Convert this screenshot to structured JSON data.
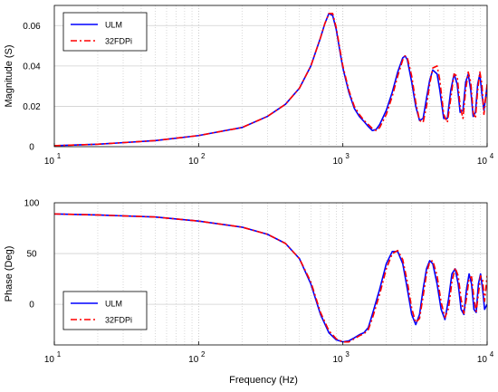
{
  "chart_data": [
    {
      "type": "line",
      "xlabel": "",
      "ylabel": "Magnitude (S)",
      "xscale": "log",
      "xlim": [
        10,
        10000
      ],
      "ylim": [
        0,
        0.07
      ],
      "xticks": [
        10,
        100,
        1000,
        10000
      ],
      "yticks": [
        0,
        0.02,
        0.04,
        0.06
      ],
      "ytick_labels": [
        "0",
        "0.02",
        "0.04",
        "0.06"
      ],
      "grid": "on",
      "legend": "top-left",
      "series": [
        {
          "name": "ULM",
          "color": "#0000ff",
          "style": "solid",
          "x": [
            10,
            20,
            50,
            100,
            200,
            300,
            400,
            500,
            600,
            700,
            750,
            800,
            850,
            900,
            950,
            1000,
            1100,
            1200,
            1300,
            1400,
            1500,
            1600,
            1700,
            1800,
            2000,
            2200,
            2400,
            2600,
            2700,
            2800,
            3000,
            3200,
            3400,
            3600,
            3800,
            4000,
            4200,
            4500,
            4700,
            5000,
            5300,
            5600,
            5900,
            6200,
            6500,
            6800,
            7100,
            7400,
            7700,
            8000,
            8300,
            8600,
            8900,
            9200,
            9500,
            10000
          ],
          "y": [
            0.0005,
            0.0012,
            0.003,
            0.0055,
            0.0095,
            0.015,
            0.021,
            0.029,
            0.04,
            0.054,
            0.061,
            0.066,
            0.065,
            0.058,
            0.048,
            0.039,
            0.027,
            0.019,
            0.015,
            0.0125,
            0.01,
            0.008,
            0.0085,
            0.011,
            0.018,
            0.027,
            0.037,
            0.044,
            0.045,
            0.043,
            0.032,
            0.02,
            0.013,
            0.014,
            0.024,
            0.033,
            0.038,
            0.036,
            0.028,
            0.014,
            0.014,
            0.028,
            0.036,
            0.031,
            0.017,
            0.018,
            0.032,
            0.036,
            0.028,
            0.015,
            0.017,
            0.031,
            0.036,
            0.026,
            0.018,
            0.03
          ]
        },
        {
          "name": "32FDPi",
          "color": "#ff0000",
          "style": "dash-dot",
          "x": [
            10,
            20,
            50,
            100,
            200,
            300,
            400,
            500,
            600,
            700,
            750,
            800,
            850,
            900,
            950,
            1000,
            1100,
            1200,
            1300,
            1400,
            1500,
            1600,
            1700,
            1800,
            2000,
            2200,
            2400,
            2600,
            2700,
            2800,
            3000,
            3200,
            3400,
            3600,
            3800,
            4000,
            4200,
            4500,
            4700,
            5000,
            5300,
            5600,
            5900,
            6200,
            6500,
            6800,
            7100,
            7400,
            7700,
            8000,
            8300,
            8600,
            8900,
            9200,
            9500,
            10000
          ],
          "y": [
            0.0005,
            0.0012,
            0.003,
            0.0055,
            0.0095,
            0.015,
            0.021,
            0.029,
            0.04,
            0.054,
            0.061,
            0.066,
            0.066,
            0.059,
            0.049,
            0.04,
            0.028,
            0.02,
            0.016,
            0.013,
            0.011,
            0.009,
            0.008,
            0.0095,
            0.016,
            0.025,
            0.035,
            0.043,
            0.045,
            0.044,
            0.035,
            0.022,
            0.013,
            0.012,
            0.02,
            0.031,
            0.039,
            0.04,
            0.033,
            0.016,
            0.012,
            0.024,
            0.036,
            0.035,
            0.02,
            0.014,
            0.028,
            0.037,
            0.032,
            0.017,
            0.014,
            0.028,
            0.037,
            0.031,
            0.016,
            0.031
          ]
        }
      ]
    },
    {
      "type": "line",
      "xlabel": "Frequency (Hz)",
      "ylabel": "Phase (Deg)",
      "xscale": "log",
      "xlim": [
        10,
        10000
      ],
      "ylim": [
        -40,
        100
      ],
      "xticks": [
        10,
        100,
        1000,
        10000
      ],
      "yticks": [
        0,
        50,
        100
      ],
      "ytick_labels": [
        "0",
        "50",
        "100"
      ],
      "grid": "on",
      "legend": "bottom-left",
      "series": [
        {
          "name": "ULM",
          "color": "#0000ff",
          "style": "solid",
          "x": [
            10,
            20,
            50,
            100,
            200,
            300,
            400,
            500,
            600,
            700,
            800,
            900,
            1000,
            1100,
            1200,
            1300,
            1400,
            1500,
            1600,
            1800,
            2000,
            2200,
            2400,
            2600,
            2800,
            3000,
            3200,
            3400,
            3600,
            3800,
            4000,
            4200,
            4500,
            4800,
            5100,
            5400,
            5700,
            6000,
            6300,
            6600,
            6900,
            7200,
            7500,
            7800,
            8100,
            8400,
            8700,
            9000,
            9300,
            9600,
            10000
          ],
          "y": [
            89,
            88,
            86,
            82,
            76,
            69,
            60,
            45,
            20,
            -10,
            -28,
            -35,
            -37,
            -36,
            -33,
            -30,
            -28,
            -23,
            -10,
            15,
            40,
            52,
            52,
            40,
            15,
            -10,
            -20,
            -10,
            15,
            35,
            43,
            40,
            20,
            -5,
            -15,
            5,
            30,
            35,
            20,
            -5,
            -10,
            15,
            30,
            20,
            -5,
            -8,
            20,
            30,
            15,
            -5,
            0
          ]
        },
        {
          "name": "32FDPi",
          "color": "#ff0000",
          "style": "dash-dot",
          "x": [
            10,
            20,
            50,
            100,
            200,
            300,
            400,
            500,
            600,
            700,
            800,
            900,
            1000,
            1100,
            1200,
            1300,
            1400,
            1500,
            1600,
            1800,
            2000,
            2200,
            2400,
            2600,
            2800,
            3000,
            3200,
            3400,
            3600,
            3800,
            4000,
            4200,
            4500,
            4800,
            5100,
            5400,
            5700,
            6000,
            6300,
            6600,
            6900,
            7200,
            7500,
            7800,
            8100,
            8400,
            8700,
            9000,
            9300,
            9600,
            10000
          ],
          "y": [
            89,
            88,
            86,
            82,
            76,
            69,
            60,
            45,
            22,
            -8,
            -26,
            -34,
            -37,
            -37,
            -34,
            -31,
            -29,
            -25,
            -14,
            10,
            35,
            50,
            53,
            44,
            22,
            -4,
            -18,
            -14,
            8,
            30,
            42,
            43,
            28,
            2,
            -13,
            -4,
            22,
            36,
            28,
            5,
            -9,
            6,
            26,
            27,
            6,
            -7,
            10,
            28,
            24,
            3,
            28
          ]
        }
      ]
    }
  ]
}
